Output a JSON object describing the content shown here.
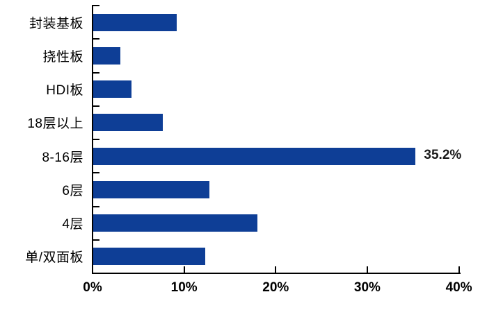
{
  "chart_data": {
    "type": "bar",
    "orientation": "horizontal",
    "title": "",
    "subtitle": "",
    "xlabel": "",
    "ylabel": "",
    "categories": [
      "封装基板",
      "挠性板",
      "HDI板",
      "18层以上",
      "8-16层",
      "6层",
      "4层",
      "单/双面板"
    ],
    "values": [
      9.1,
      3.0,
      4.2,
      7.6,
      35.2,
      12.7,
      17.9,
      12.2
    ],
    "unit": "%",
    "xlim": [
      0,
      40
    ],
    "x_ticks": [
      {
        "value": 0,
        "label": "0%"
      },
      {
        "value": 10,
        "label": "10%"
      },
      {
        "value": 20,
        "label": "20%"
      },
      {
        "value": 30,
        "label": "30%"
      },
      {
        "value": 40,
        "label": "40%"
      }
    ],
    "annotations": [
      {
        "category_index": 4,
        "category": "8-16层",
        "text": "35.2%"
      }
    ],
    "grid": false,
    "legend": false,
    "colors": {
      "bar": "#0E3E96",
      "axis": "#000000",
      "text": "#000000",
      "background": "#FFFFFF"
    }
  }
}
